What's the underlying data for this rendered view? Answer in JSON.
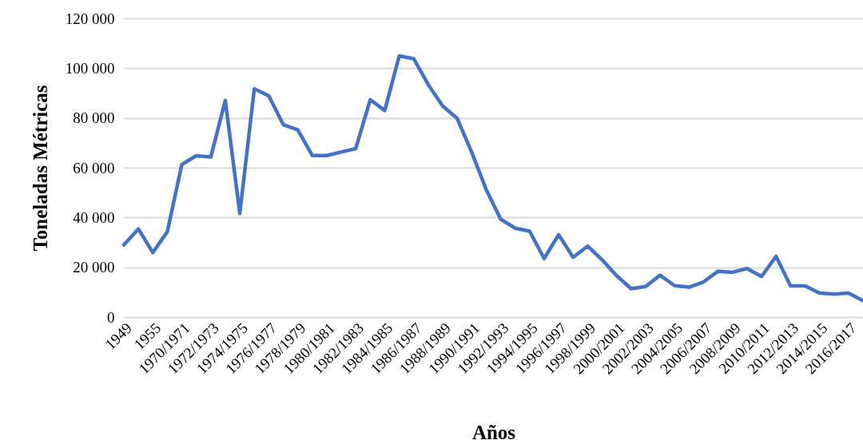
{
  "chart_data": {
    "type": "line",
    "xlabel": "Años",
    "ylabel": "Toneladas Métricas",
    "categories": [
      "1949",
      null,
      "1955",
      null,
      "1970/1971",
      null,
      "1972/1973",
      null,
      "1974/1975",
      null,
      "1976/1977",
      null,
      "1978/1979",
      null,
      "1980/1981",
      null,
      "1982/1983",
      null,
      "1984/1985",
      null,
      "1986/1987",
      null,
      "1988/1989",
      null,
      "1990/1991",
      null,
      "1992/1993",
      null,
      "1994/1995",
      null,
      "1996/1997",
      null,
      "1998/1999",
      null,
      "2000/2001",
      null,
      "2002/2003",
      null,
      "2004/2005",
      null,
      "2006/2007",
      null,
      "2008/2009",
      null,
      "2010/2011",
      null,
      "2012/2013",
      null,
      "2014/2015",
      null,
      "2016/2017",
      null
    ],
    "series": [
      {
        "color": "#4472c4",
        "values": [
          29000,
          35400,
          25900,
          34300,
          61300,
          64800,
          64300,
          87000,
          41600,
          91700,
          88900,
          77300,
          75200,
          64900,
          64900,
          66300,
          67700,
          87300,
          83000,
          104900,
          103800,
          93400,
          84800,
          79800,
          66200,
          51200,
          39300,
          35700,
          34500,
          23500,
          33100,
          24000,
          28500,
          23000,
          16600,
          11400,
          12300,
          16800,
          12600,
          12000,
          14100,
          18400,
          18000,
          19500,
          16300,
          24400,
          12500,
          12500,
          9600,
          9200,
          9600,
          6600
        ]
      }
    ],
    "ylim": [
      0,
      120000
    ],
    "yticks": [
      {
        "value": 0,
        "label": "0"
      },
      {
        "value": 20000,
        "label": "20 000"
      },
      {
        "value": 40000,
        "label": "40 000"
      },
      {
        "value": 60000,
        "label": "60 000"
      },
      {
        "value": 80000,
        "label": "80 000"
      },
      {
        "value": 100000,
        "label": "100 000"
      },
      {
        "value": 120000,
        "label": "120 000"
      }
    ],
    "grid": "y",
    "legend": false,
    "marker": "none",
    "line_style": "solid"
  }
}
